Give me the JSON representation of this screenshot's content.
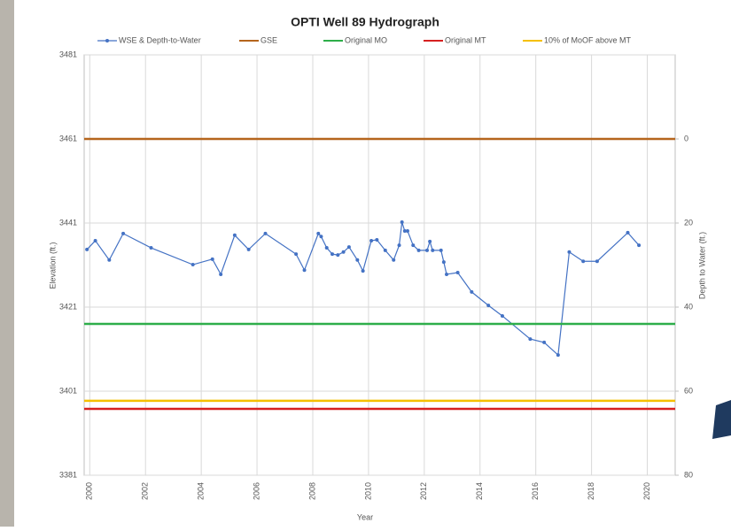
{
  "chart_data": {
    "type": "line",
    "title": "OPTI Well 89 Hydrograph",
    "x_label": "Year",
    "y_label": "Elevation (ft.)",
    "y2_label": "Depth to Water (ft.)",
    "xlim": [
      1999.8,
      2021
    ],
    "xticks": [
      2000,
      2002,
      2004,
      2006,
      2008,
      2010,
      2012,
      2014,
      2016,
      2018,
      2020
    ],
    "ylim": [
      3381,
      3481
    ],
    "yticks": [
      3381,
      3401,
      3421,
      3441,
      3461,
      3481
    ],
    "y2lim": [
      80,
      -20
    ],
    "y2ticks": [
      0,
      20,
      40,
      60,
      80
    ],
    "grid": true,
    "legend": "top",
    "series": [
      {
        "name": "WSE & Depth-to-Water",
        "color": "#4472c4",
        "x": [
          1999.9,
          2000.2,
          2000.7,
          2001.2,
          2002.2,
          2003.7,
          2004.4,
          2004.7,
          2005.2,
          2005.7,
          2006.3,
          2007.4,
          2007.7,
          2008.2,
          2008.3,
          2008.5,
          2008.7,
          2008.9,
          2009.1,
          2009.3,
          2009.6,
          2009.8,
          2010.1,
          2010.3,
          2010.6,
          2010.9,
          2011.1,
          2011.2,
          2011.3,
          2011.4,
          2011.6,
          2011.8,
          2012.1,
          2012.2,
          2012.3,
          2012.6,
          2012.7,
          2012.8,
          2013.2,
          2013.7,
          2014.3,
          2014.8,
          2015.8,
          2016.3,
          2016.8,
          2017.2,
          2017.7,
          2018.2,
          2019.3,
          2019.7
        ],
        "values": [
          3434.7,
          3436.8,
          3432.2,
          3438.5,
          3435.1,
          3431.1,
          3432.4,
          3428.8,
          3438.1,
          3434.7,
          3438.5,
          3433.6,
          3429.8,
          3438.5,
          3437.8,
          3435.1,
          3433.6,
          3433.4,
          3434.1,
          3435.3,
          3432.2,
          3429.6,
          3436.8,
          3437.0,
          3434.5,
          3432.2,
          3435.7,
          3441.2,
          3439.1,
          3439.1,
          3435.7,
          3434.5,
          3434.5,
          3436.6,
          3434.5,
          3434.5,
          3431.7,
          3428.8,
          3429.2,
          3424.6,
          3421.4,
          3418.9,
          3413.4,
          3412.6,
          3409.6,
          3434.1,
          3431.9,
          3431.9,
          3438.7,
          3435.7
        ]
      },
      {
        "name": "GSE",
        "color": "#b5651d",
        "value": 3461
      },
      {
        "name": "Original MO",
        "color": "#2eae4a",
        "value": 3417
      },
      {
        "name": "Original MT",
        "color": "#d62020",
        "value": 3396.8
      },
      {
        "name": "10% of MoOF above MT",
        "color": "#f5c000",
        "value": 3398.7
      }
    ]
  }
}
